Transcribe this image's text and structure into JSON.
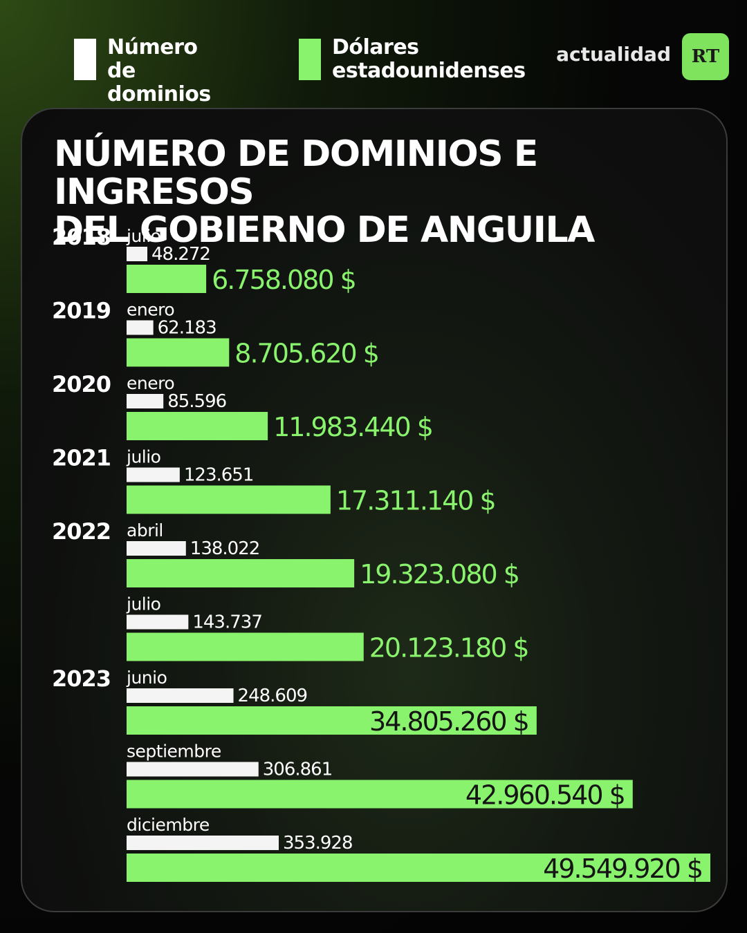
{
  "legend": {
    "domains": {
      "label": "Número\nde dominios",
      "color": "#ffffff"
    },
    "usd": {
      "label": "Dólares\nestadounidenses",
      "color": "#8af36e"
    }
  },
  "brand": {
    "text": "actualidad",
    "logo": "RT"
  },
  "chart_data": {
    "type": "bar",
    "title": "NÚMERO DE DOMINIOS E INGRESOS\nDEL GOBIERNO DE ANGUILA",
    "colors": {
      "domains": "#f4f4f4",
      "usd": "#8af36e"
    },
    "entries": [
      {
        "year": "2018",
        "month": "julio",
        "domains": 48272,
        "domains_label": "48.272",
        "usd": 6758080,
        "usd_label": "6.758.080 $"
      },
      {
        "year": "2019",
        "month": "enero",
        "domains": 62183,
        "domains_label": "62.183",
        "usd": 8705620,
        "usd_label": "8.705.620 $"
      },
      {
        "year": "2020",
        "month": "enero",
        "domains": 85596,
        "domains_label": "85.596",
        "usd": 11983440,
        "usd_label": "11.983.440 $"
      },
      {
        "year": "2021",
        "month": "julio",
        "domains": 123651,
        "domains_label": "123.651",
        "usd": 17311140,
        "usd_label": "17.311.140 $"
      },
      {
        "year": "2022",
        "month": "abril",
        "domains": 138022,
        "domains_label": "138.022",
        "usd": 19323080,
        "usd_label": "19.323.080 $"
      },
      {
        "year": "",
        "month": "julio",
        "domains": 143737,
        "domains_label": "143.737",
        "usd": 20123180,
        "usd_label": "20.123.180 $"
      },
      {
        "year": "2023",
        "month": "junio",
        "domains": 248609,
        "domains_label": "248.609",
        "usd": 34805260,
        "usd_label": "34.805.260 $"
      },
      {
        "year": "",
        "month": "septiembre",
        "domains": 306861,
        "domains_label": "306.861",
        "usd": 42960540,
        "usd_label": "42.960.540 $"
      },
      {
        "year": "",
        "month": "diciembre",
        "domains": 353928,
        "domains_label": "353.928",
        "usd": 49549920,
        "usd_label": "49.549.920 $"
      }
    ]
  }
}
